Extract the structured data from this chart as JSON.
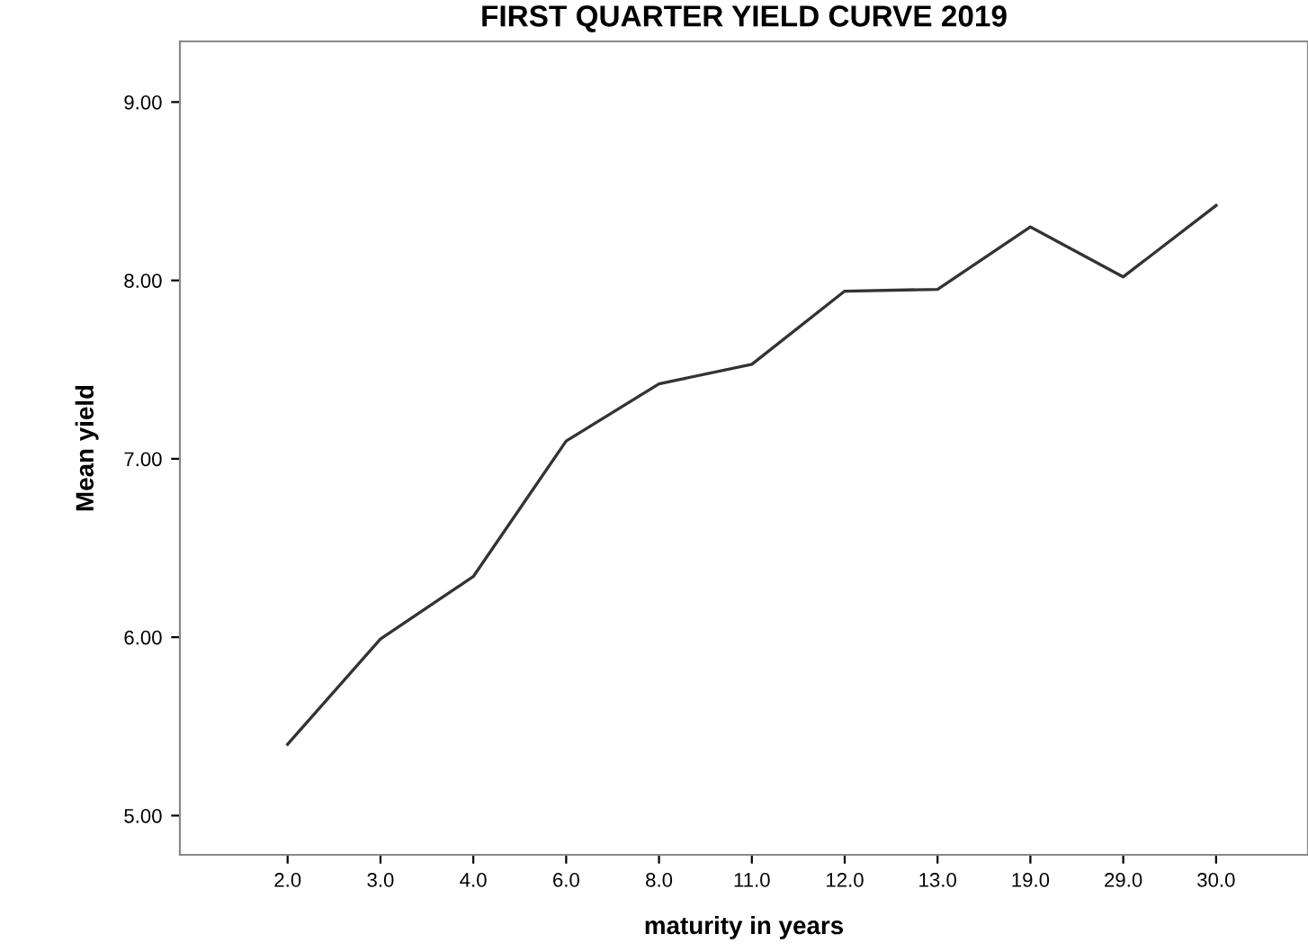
{
  "chart_data": {
    "type": "line",
    "title": "FIRST QUARTER YIELD CURVE 2019",
    "xlabel": "maturity in years",
    "ylabel": "Mean yield",
    "categories": [
      "2.0",
      "3.0",
      "4.0",
      "6.0",
      "8.0",
      "11.0",
      "12.0",
      "13.0",
      "19.0",
      "29.0",
      "30.0"
    ],
    "series": [
      {
        "color": "#333333",
        "values": [
          5.4,
          5.99,
          6.34,
          7.1,
          7.42,
          7.53,
          7.94,
          7.95,
          8.3,
          8.02,
          8.42
        ]
      }
    ],
    "ylim": [
      4.78,
      9.34
    ],
    "yticks": [
      {
        "value": 5,
        "label": "5.00"
      },
      {
        "value": 6,
        "label": "6.00"
      },
      {
        "value": 7,
        "label": "7.00"
      },
      {
        "value": 8,
        "label": "8.00"
      },
      {
        "value": 9,
        "label": "9.00"
      }
    ],
    "grid": false,
    "marker": "none",
    "line_style": "solid"
  }
}
